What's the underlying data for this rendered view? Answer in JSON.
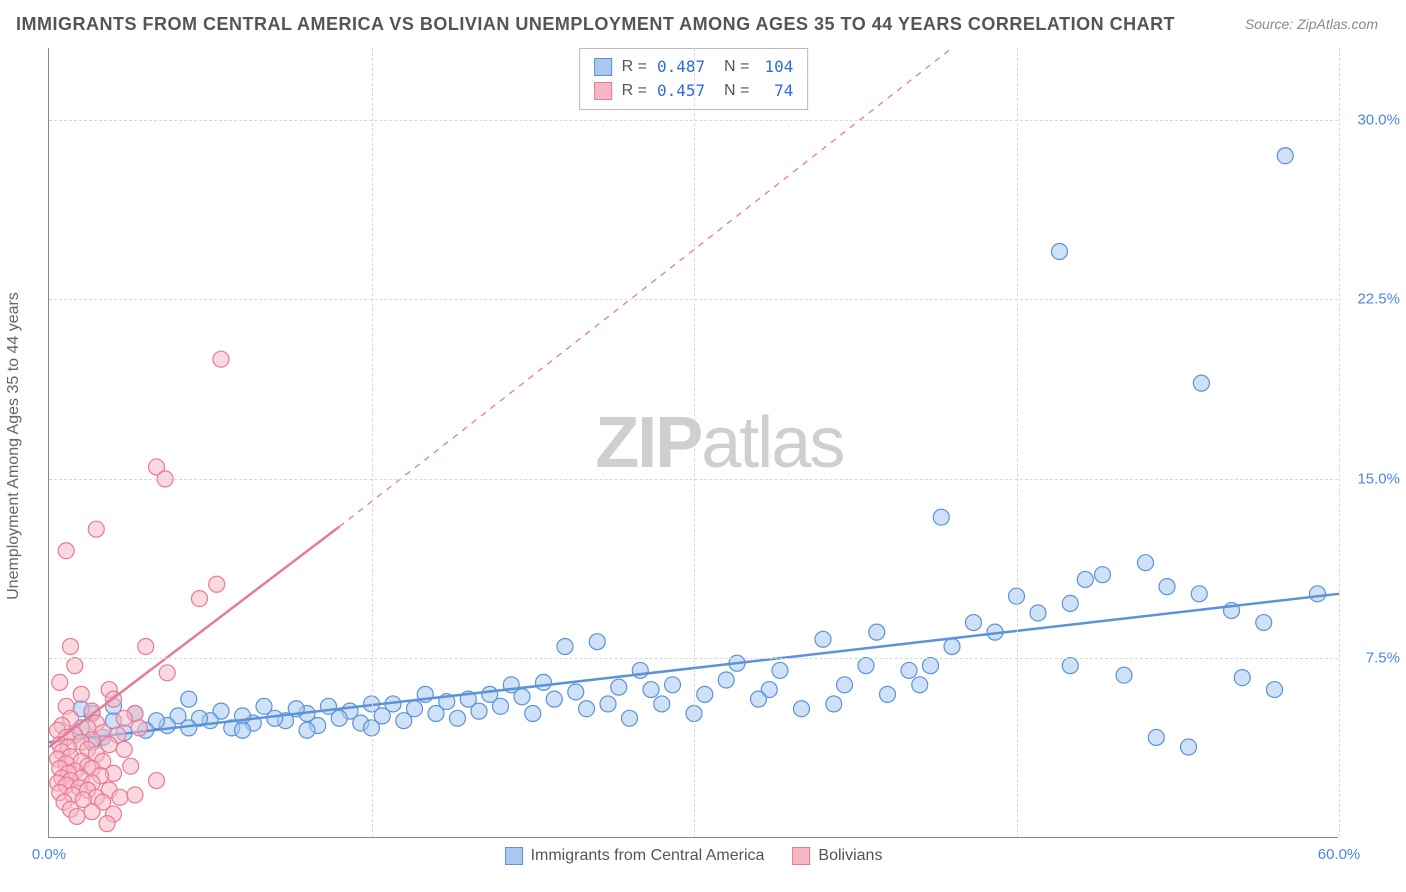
{
  "title": "IMMIGRANTS FROM CENTRAL AMERICA VS BOLIVIAN UNEMPLOYMENT AMONG AGES 35 TO 44 YEARS CORRELATION CHART",
  "source": "Source: ZipAtlas.com",
  "watermark_zip": "ZIP",
  "watermark_atlas": "atlas",
  "chart": {
    "type": "scatter",
    "ylabel": "Unemployment Among Ages 35 to 44 years",
    "xlim": [
      0,
      60
    ],
    "ylim": [
      0,
      33
    ],
    "xtick_labels": {
      "0": "0.0%",
      "60": "60.0%"
    },
    "xtick_positions": [
      0,
      15,
      30,
      45,
      60
    ],
    "ytick_labels": {
      "7.5": "7.5%",
      "15": "15.0%",
      "22.5": "22.5%",
      "30": "30.0%"
    },
    "ytick_positions": [
      7.5,
      15,
      22.5,
      30
    ],
    "background_color": "#ffffff",
    "grid_color": "#d8d8d8",
    "axis_color": "#888888",
    "marker_radius": 8,
    "marker_opacity": 0.55,
    "series": [
      {
        "name": "Immigrants from Central America",
        "color_fill": "#a8c8f0",
        "color_stroke": "#5b93d8",
        "R": "0.487",
        "N": "104",
        "trend": {
          "x1": 0,
          "y1": 4.0,
          "x2": 60,
          "y2": 10.2,
          "dash_after_x": 60
        },
        "points": [
          [
            57.5,
            28.5
          ],
          [
            47.0,
            24.5
          ],
          [
            53.6,
            19.0
          ],
          [
            41.5,
            13.4
          ],
          [
            59.0,
            10.2
          ],
          [
            55.0,
            9.5
          ],
          [
            56.5,
            9.0
          ],
          [
            52.0,
            10.5
          ],
          [
            53.5,
            10.2
          ],
          [
            51.0,
            11.5
          ],
          [
            49.0,
            11.0
          ],
          [
            48.2,
            10.8
          ],
          [
            47.5,
            9.8
          ],
          [
            46.0,
            9.4
          ],
          [
            45.0,
            10.1
          ],
          [
            44.0,
            8.6
          ],
          [
            43.0,
            9.0
          ],
          [
            42.0,
            8.0
          ],
          [
            41.0,
            7.2
          ],
          [
            40.5,
            6.4
          ],
          [
            40.0,
            7.0
          ],
          [
            39.0,
            6.0
          ],
          [
            38.5,
            8.6
          ],
          [
            38.0,
            7.2
          ],
          [
            37.0,
            6.4
          ],
          [
            36.0,
            8.3
          ],
          [
            35.0,
            5.4
          ],
          [
            34.0,
            7.0
          ],
          [
            33.5,
            6.2
          ],
          [
            33.0,
            5.8
          ],
          [
            32.0,
            7.3
          ],
          [
            31.5,
            6.6
          ],
          [
            30.5,
            6.0
          ],
          [
            30.0,
            5.2
          ],
          [
            29.0,
            6.4
          ],
          [
            28.5,
            5.6
          ],
          [
            28.0,
            6.2
          ],
          [
            27.5,
            7.0
          ],
          [
            27.0,
            5.0
          ],
          [
            26.5,
            6.3
          ],
          [
            26.0,
            5.6
          ],
          [
            25.5,
            8.2
          ],
          [
            25.0,
            5.4
          ],
          [
            24.5,
            6.1
          ],
          [
            24.0,
            8.0
          ],
          [
            23.5,
            5.8
          ],
          [
            23.0,
            6.5
          ],
          [
            22.5,
            5.2
          ],
          [
            22.0,
            5.9
          ],
          [
            21.5,
            6.4
          ],
          [
            21.0,
            5.5
          ],
          [
            20.5,
            6.0
          ],
          [
            20.0,
            5.3
          ],
          [
            19.5,
            5.8
          ],
          [
            19.0,
            5.0
          ],
          [
            18.5,
            5.7
          ],
          [
            18.0,
            5.2
          ],
          [
            17.5,
            6.0
          ],
          [
            17.0,
            5.4
          ],
          [
            16.5,
            4.9
          ],
          [
            16.0,
            5.6
          ],
          [
            15.5,
            5.1
          ],
          [
            15.0,
            5.6
          ],
          [
            14.5,
            4.8
          ],
          [
            14.0,
            5.3
          ],
          [
            13.5,
            5.0
          ],
          [
            13.0,
            5.5
          ],
          [
            12.5,
            4.7
          ],
          [
            12.0,
            5.2
          ],
          [
            11.5,
            5.4
          ],
          [
            11.0,
            4.9
          ],
          [
            10.5,
            5.0
          ],
          [
            10.0,
            5.5
          ],
          [
            9.5,
            4.8
          ],
          [
            9.0,
            5.1
          ],
          [
            8.5,
            4.6
          ],
          [
            8.0,
            5.3
          ],
          [
            7.5,
            4.9
          ],
          [
            7.0,
            5.0
          ],
          [
            6.5,
            4.6
          ],
          [
            6.0,
            5.1
          ],
          [
            5.5,
            4.7
          ],
          [
            5.0,
            4.9
          ],
          [
            4.5,
            4.5
          ],
          [
            4.0,
            5.2
          ],
          [
            3.5,
            4.4
          ],
          [
            3.0,
            4.9
          ],
          [
            2.5,
            4.2
          ],
          [
            2.0,
            5.2
          ],
          [
            1.5,
            4.6
          ],
          [
            1.5,
            5.4
          ],
          [
            53.0,
            3.8
          ],
          [
            55.5,
            6.7
          ],
          [
            50.0,
            6.8
          ],
          [
            47.5,
            7.2
          ],
          [
            57.0,
            6.2
          ],
          [
            51.5,
            4.2
          ],
          [
            2.0,
            4.0
          ],
          [
            3.0,
            5.5
          ],
          [
            6.5,
            5.8
          ],
          [
            9.0,
            4.5
          ],
          [
            12.0,
            4.5
          ],
          [
            15.0,
            4.6
          ],
          [
            36.5,
            5.6
          ]
        ]
      },
      {
        "name": "Bolivians",
        "color_fill": "#f4b8c4",
        "color_stroke": "#e87a96",
        "R": "0.457",
        "N": "74",
        "trend": {
          "x1": 0,
          "y1": 3.8,
          "x2": 13.5,
          "y2": 13.0,
          "dash_to_x": 42,
          "dash_to_y": 33
        },
        "points": [
          [
            8.0,
            20.0
          ],
          [
            5.0,
            15.5
          ],
          [
            5.4,
            15.0
          ],
          [
            2.2,
            12.9
          ],
          [
            0.8,
            12.0
          ],
          [
            7.8,
            10.6
          ],
          [
            7.0,
            10.0
          ],
          [
            1.0,
            8.0
          ],
          [
            4.5,
            8.0
          ],
          [
            1.2,
            7.2
          ],
          [
            5.5,
            6.9
          ],
          [
            0.5,
            6.5
          ],
          [
            2.8,
            6.2
          ],
          [
            1.5,
            6.0
          ],
          [
            3.0,
            5.8
          ],
          [
            0.8,
            5.5
          ],
          [
            2.0,
            5.3
          ],
          [
            4.0,
            5.2
          ],
          [
            1.0,
            5.0
          ],
          [
            3.5,
            5.0
          ],
          [
            2.2,
            4.8
          ],
          [
            0.6,
            4.7
          ],
          [
            1.8,
            4.6
          ],
          [
            4.2,
            4.6
          ],
          [
            0.4,
            4.5
          ],
          [
            2.5,
            4.4
          ],
          [
            1.2,
            4.3
          ],
          [
            3.2,
            4.3
          ],
          [
            0.8,
            4.2
          ],
          [
            2.0,
            4.1
          ],
          [
            1.5,
            4.0
          ],
          [
            0.5,
            3.9
          ],
          [
            2.8,
            3.9
          ],
          [
            0.9,
            3.8
          ],
          [
            1.8,
            3.7
          ],
          [
            3.5,
            3.7
          ],
          [
            0.6,
            3.6
          ],
          [
            2.2,
            3.5
          ],
          [
            1.0,
            3.4
          ],
          [
            0.4,
            3.3
          ],
          [
            1.5,
            3.2
          ],
          [
            2.5,
            3.2
          ],
          [
            0.8,
            3.1
          ],
          [
            1.8,
            3.0
          ],
          [
            0.5,
            2.9
          ],
          [
            2.0,
            2.9
          ],
          [
            1.2,
            2.8
          ],
          [
            0.9,
            2.7
          ],
          [
            3.0,
            2.7
          ],
          [
            2.4,
            2.6
          ],
          [
            0.6,
            2.5
          ],
          [
            1.5,
            2.5
          ],
          [
            1.0,
            2.4
          ],
          [
            0.4,
            2.3
          ],
          [
            2.0,
            2.3
          ],
          [
            0.8,
            2.2
          ],
          [
            1.4,
            2.1
          ],
          [
            1.8,
            2.0
          ],
          [
            2.8,
            2.0
          ],
          [
            0.5,
            1.9
          ],
          [
            1.1,
            1.8
          ],
          [
            2.2,
            1.7
          ],
          [
            3.3,
            1.7
          ],
          [
            1.6,
            1.6
          ],
          [
            0.7,
            1.5
          ],
          [
            2.5,
            1.5
          ],
          [
            1.0,
            1.2
          ],
          [
            2.0,
            1.1
          ],
          [
            3.0,
            1.0
          ],
          [
            1.3,
            0.9
          ],
          [
            2.7,
            0.6
          ],
          [
            4.0,
            1.8
          ],
          [
            5.0,
            2.4
          ],
          [
            3.8,
            3.0
          ]
        ]
      }
    ],
    "bottom_legend": [
      {
        "label": "Immigrants from Central America",
        "fill": "#a8c8f0",
        "stroke": "#5b93d8"
      },
      {
        "label": "Bolivians",
        "fill": "#f4b8c4",
        "stroke": "#e87a96"
      }
    ]
  }
}
